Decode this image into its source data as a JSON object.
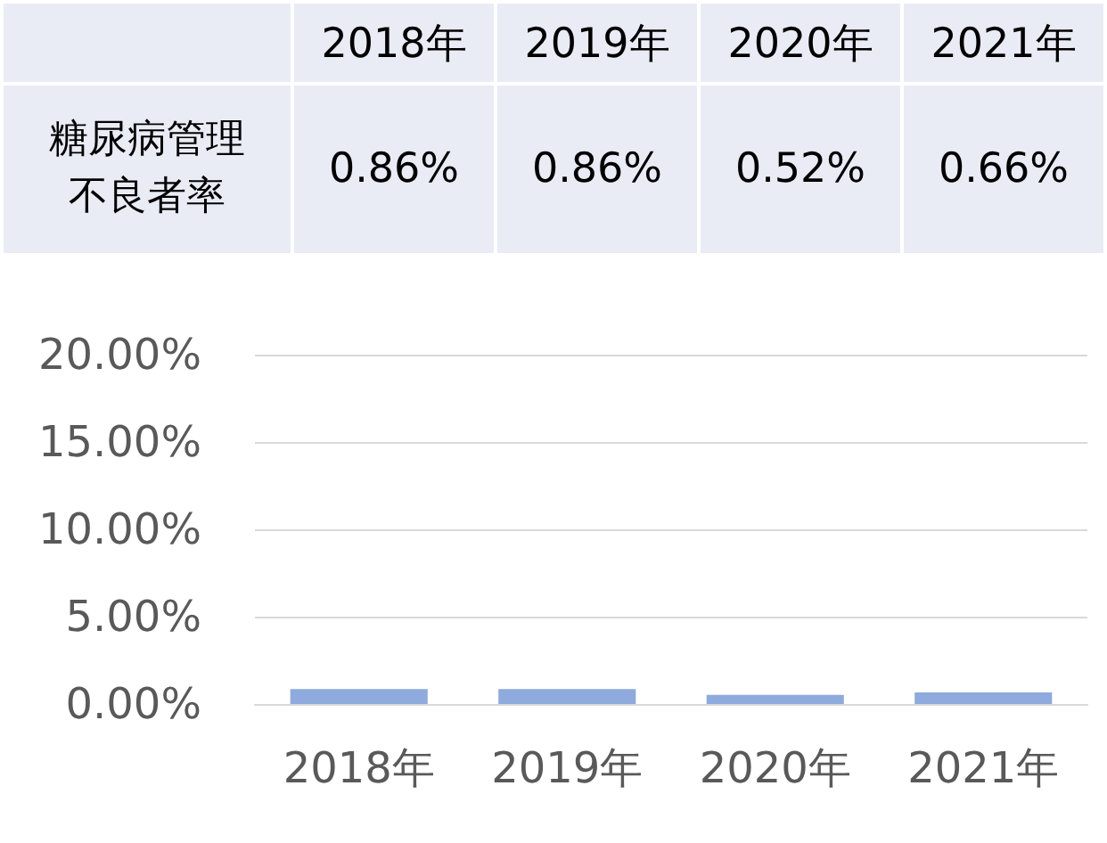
{
  "chart_data": {
    "type": "bar",
    "categories": [
      "2018年",
      "2019年",
      "2020年",
      "2021年"
    ],
    "series": [
      {
        "name": "糖尿病管理不良者率",
        "color": "#8faadc",
        "values": [
          0.86,
          0.86,
          0.52,
          0.66
        ],
        "value_labels": [
          "0.86%",
          "0.86%",
          "0.52%",
          "0.66%"
        ]
      }
    ],
    "ylim": [
      0,
      20
    ],
    "yticks": [
      {
        "value": 0,
        "label": "0.00%"
      },
      {
        "value": 5,
        "label": "5.00%"
      },
      {
        "value": 10,
        "label": "10.00%"
      },
      {
        "value": 15,
        "label": "15.00%"
      },
      {
        "value": 20,
        "label": "20.00%"
      }
    ],
    "grid": "y"
  }
}
